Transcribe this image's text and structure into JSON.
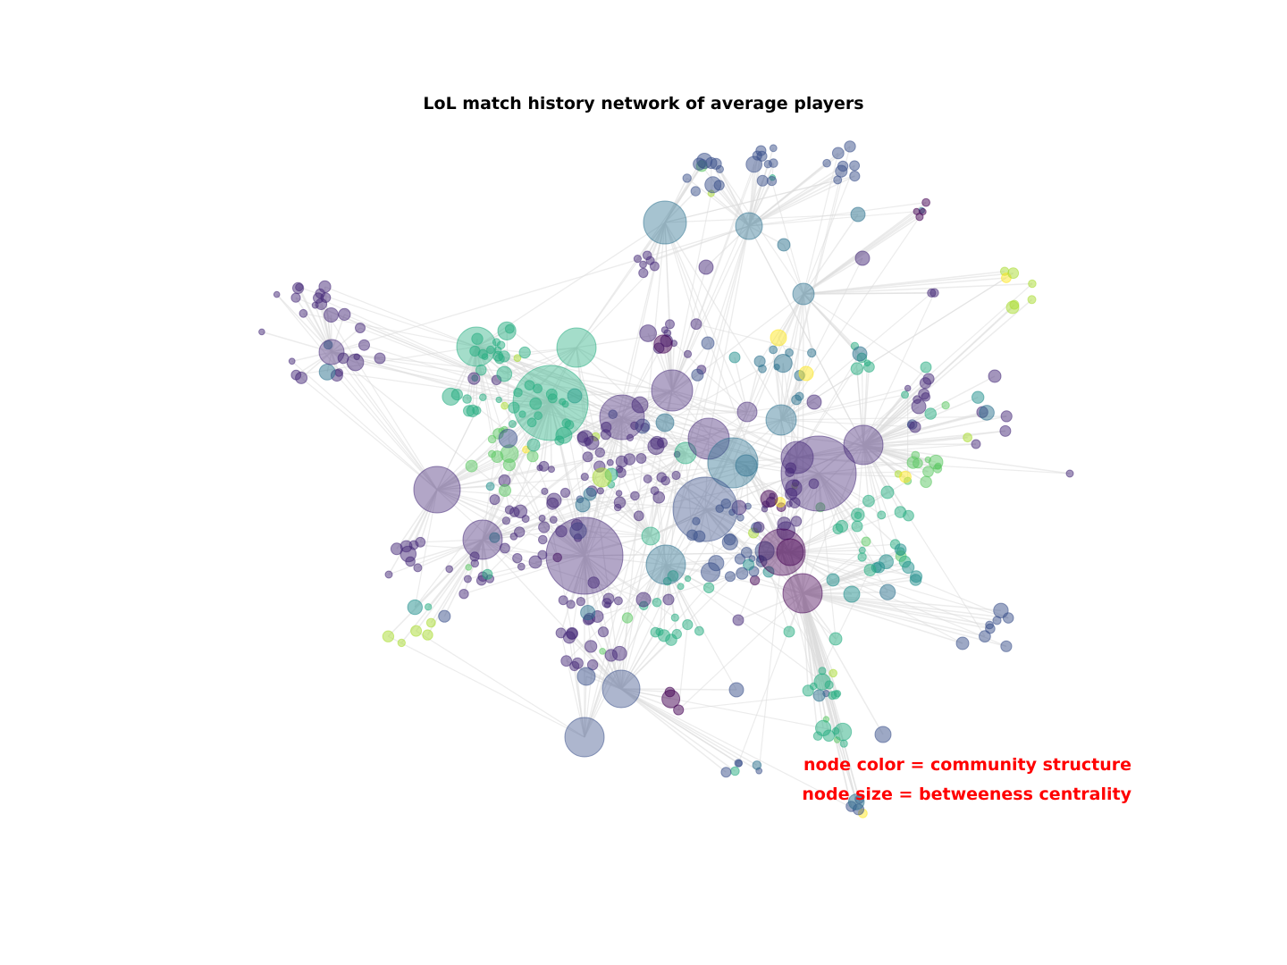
{
  "title": "LoL match history network of average players",
  "legend": {
    "color_note": "node color = community structure",
    "size_note": "node size = betweeness centrality"
  },
  "palette": [
    "#440154",
    "#472c7a",
    "#3b518b",
    "#2c718e",
    "#21908d",
    "#27ad81",
    "#5cc863",
    "#aadc32",
    "#fde725"
  ],
  "edge_color": "#dcdcdc"
}
